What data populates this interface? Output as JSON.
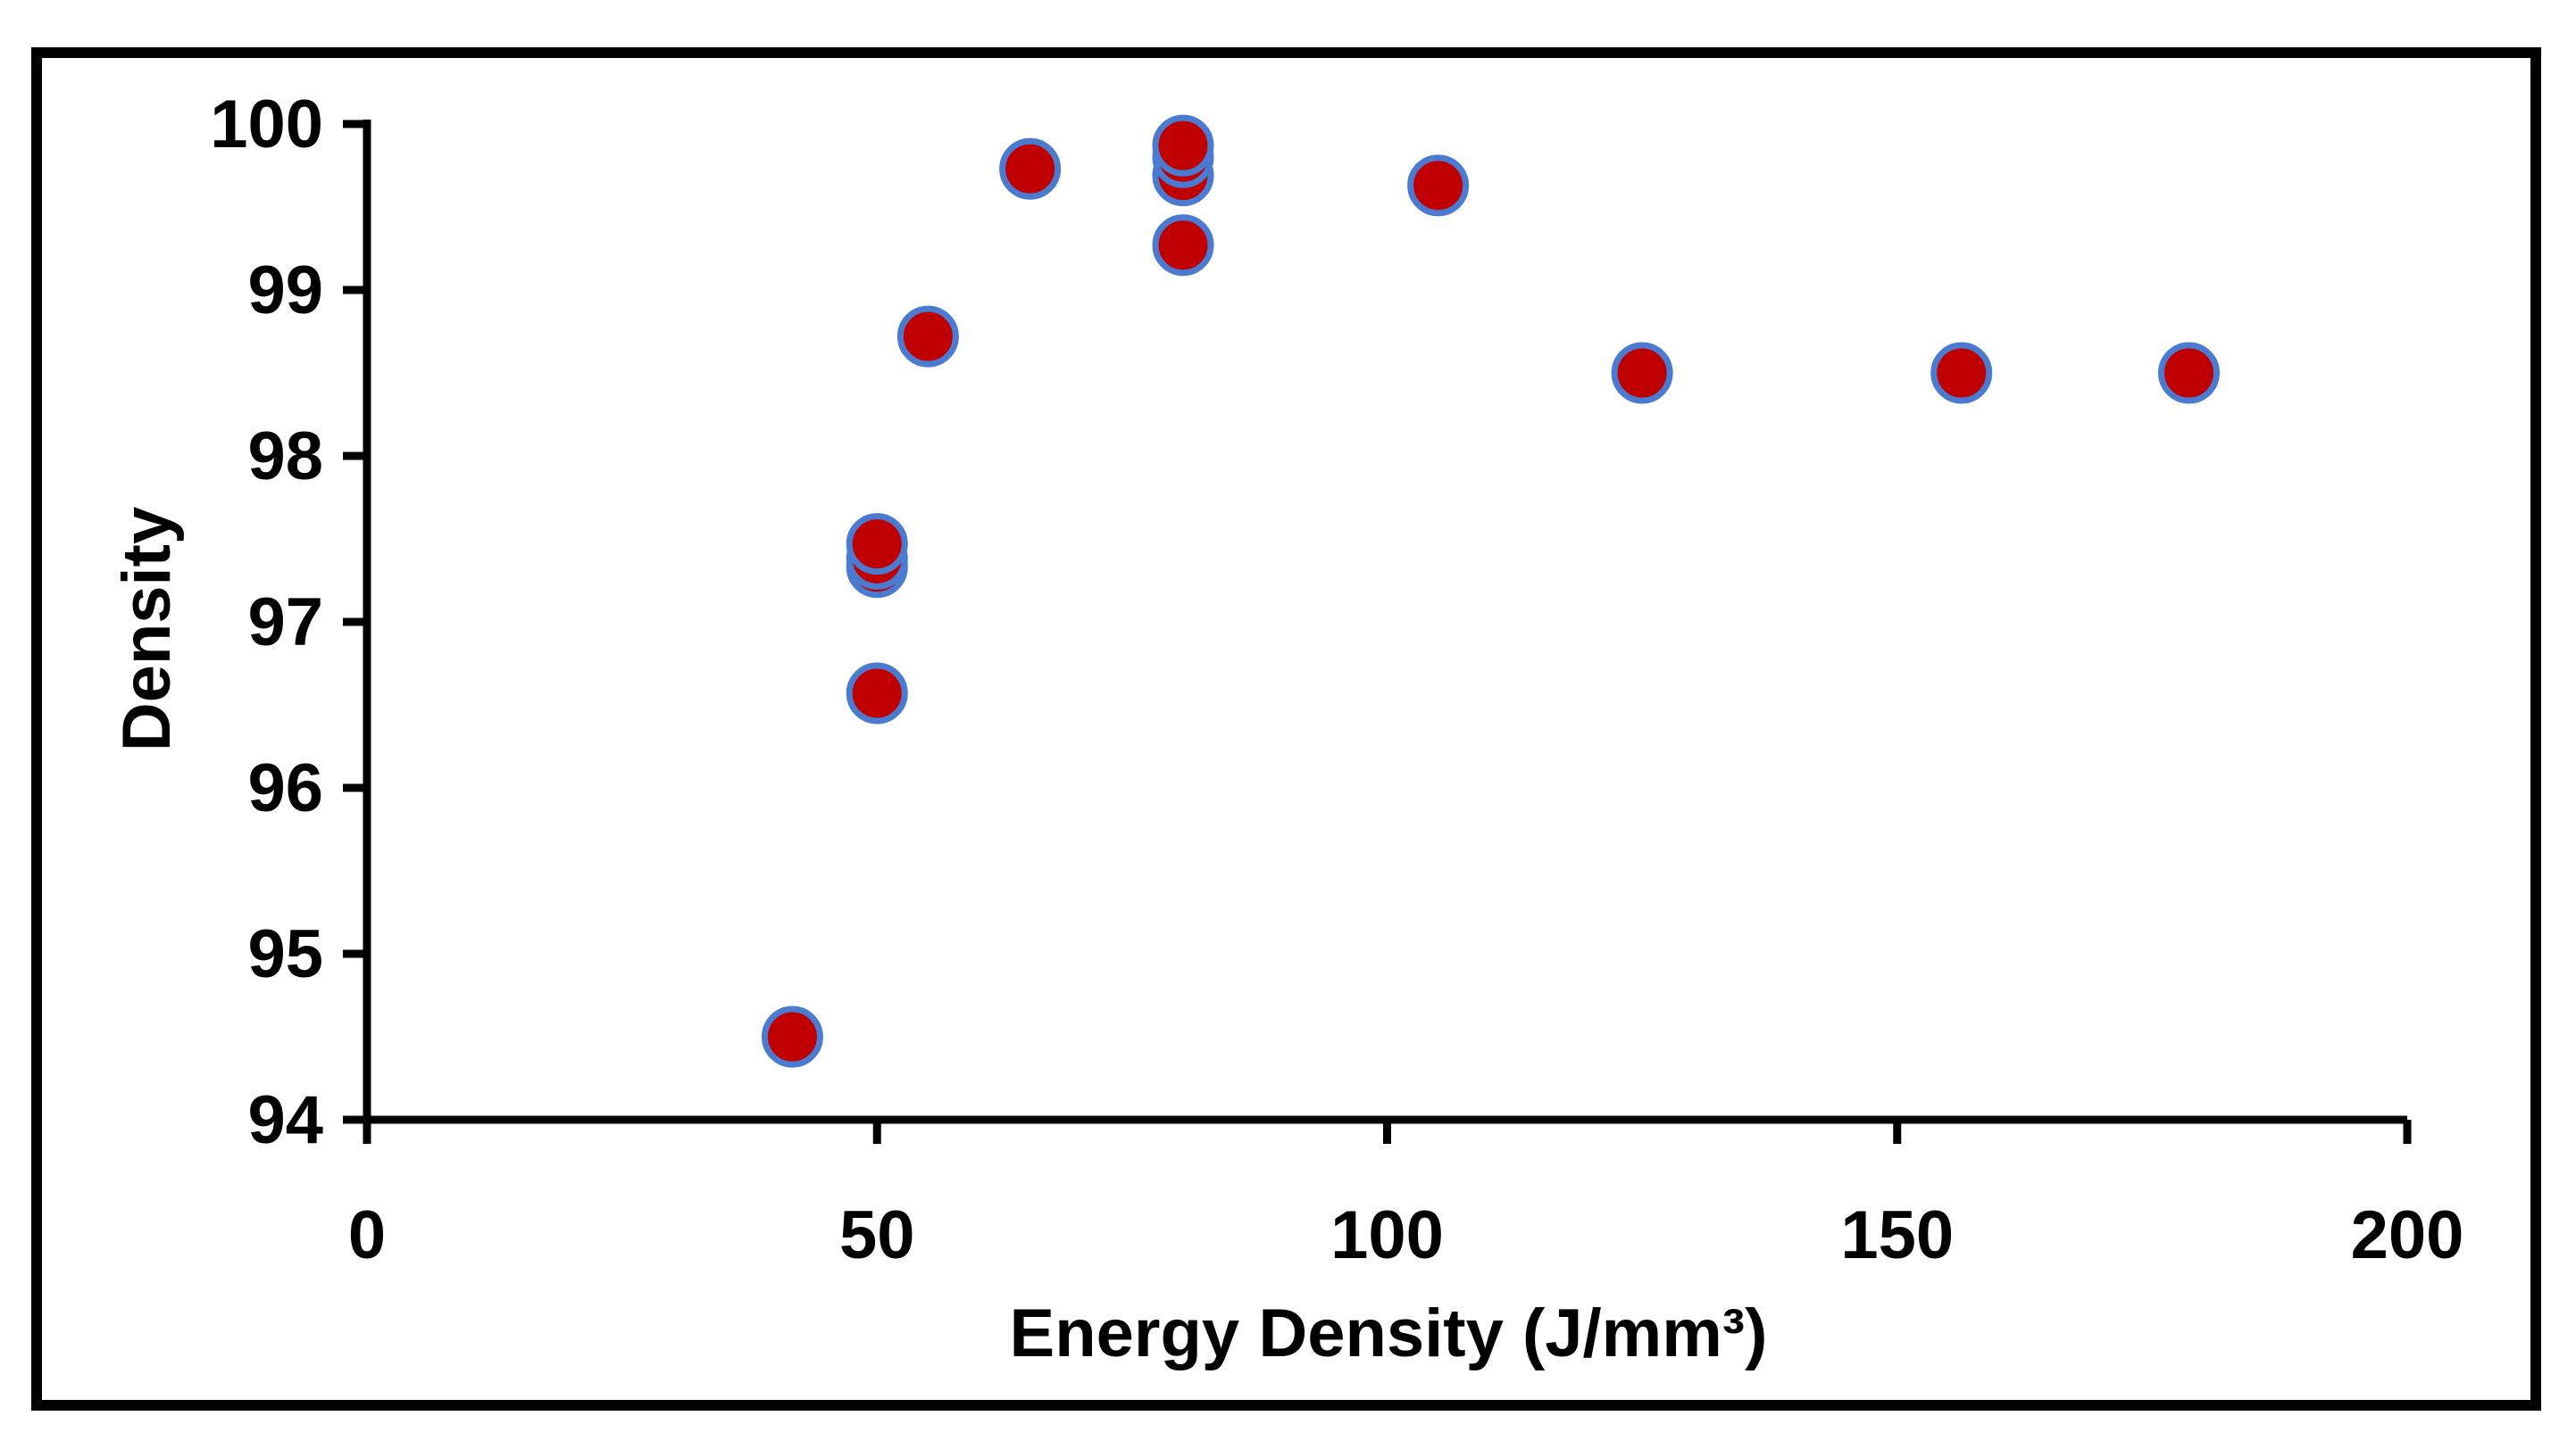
{
  "chart_data": {
    "type": "scatter",
    "title": "",
    "xlabel": "Energy Density (J/mm³)",
    "ylabel": "Density",
    "xlim": [
      0,
      200
    ],
    "ylim": [
      94,
      100
    ],
    "x_ticks": [
      "0",
      "50",
      "100",
      "150",
      "200"
    ],
    "y_ticks": [
      "94",
      "95",
      "96",
      "97",
      "98",
      "99",
      "100"
    ],
    "grid": false,
    "legend": "none",
    "series": [
      {
        "marker_fill": "#c00000",
        "marker_edge": "#4a7bd0",
        "points": [
          {
            "x": 41.7,
            "y": 94.5
          },
          {
            "x": 50.0,
            "y": 96.57
          },
          {
            "x": 50.0,
            "y": 97.33
          },
          {
            "x": 50.0,
            "y": 97.38
          },
          {
            "x": 50.0,
            "y": 97.47
          },
          {
            "x": 55.0,
            "y": 98.72
          },
          {
            "x": 65.0,
            "y": 99.73
          },
          {
            "x": 80.0,
            "y": 99.27
          },
          {
            "x": 80.0,
            "y": 99.69
          },
          {
            "x": 80.0,
            "y": 99.8
          },
          {
            "x": 80.0,
            "y": 99.87
          },
          {
            "x": 105.0,
            "y": 99.63
          },
          {
            "x": 125.0,
            "y": 98.5
          },
          {
            "x": 156.3,
            "y": 98.5
          },
          {
            "x": 178.6,
            "y": 98.5
          }
        ]
      }
    ]
  }
}
